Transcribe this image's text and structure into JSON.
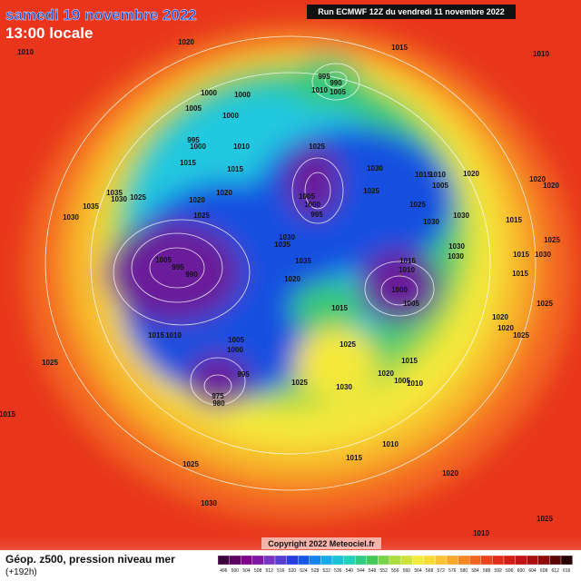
{
  "header": {
    "date": "samedi 19 novembre 2022",
    "time": "13:00 locale",
    "run": "Run ECMWF 12Z du vendredi 11 novembre 2022"
  },
  "footer": {
    "title": "Géop. z500, pression niveau mer",
    "lead": "(+192h)",
    "copyright": "Copyright 2022 Meteociel.fr"
  },
  "legend": {
    "labels": [
      496,
      500,
      504,
      508,
      512,
      516,
      520,
      524,
      528,
      532,
      536,
      540,
      544,
      548,
      552,
      556,
      560,
      564,
      568,
      572,
      576,
      580,
      584,
      588,
      592,
      596,
      600,
      604,
      608,
      612,
      616
    ]
  },
  "isobars": [
    1010,
    1020,
    1015,
    1010,
    995,
    990,
    1010,
    1005,
    1000,
    1000,
    1005,
    1000,
    995,
    1000,
    1010,
    1025,
    1015,
    1015,
    1030,
    1015,
    1010,
    1020,
    1005,
    1020,
    1020,
    1035,
    1030,
    1025,
    1020,
    1020,
    1025,
    1005,
    1000,
    995,
    1025,
    1035,
    1025,
    1030,
    1030,
    1030,
    1015,
    1030,
    1035,
    1025,
    1030,
    1030,
    1005,
    995,
    990,
    1015,
    1010,
    1035,
    1015,
    1030,
    1015,
    1020,
    1000,
    1005,
    1015,
    1025,
    1020,
    1015,
    1010,
    1005,
    1000,
    1020,
    1025,
    1025,
    1025,
    995,
    1015,
    1025,
    1030,
    975,
    980,
    1020,
    1005,
    1010,
    1015,
    1010,
    1015,
    1025,
    1020,
    1030,
    1010,
    1025
  ]
}
